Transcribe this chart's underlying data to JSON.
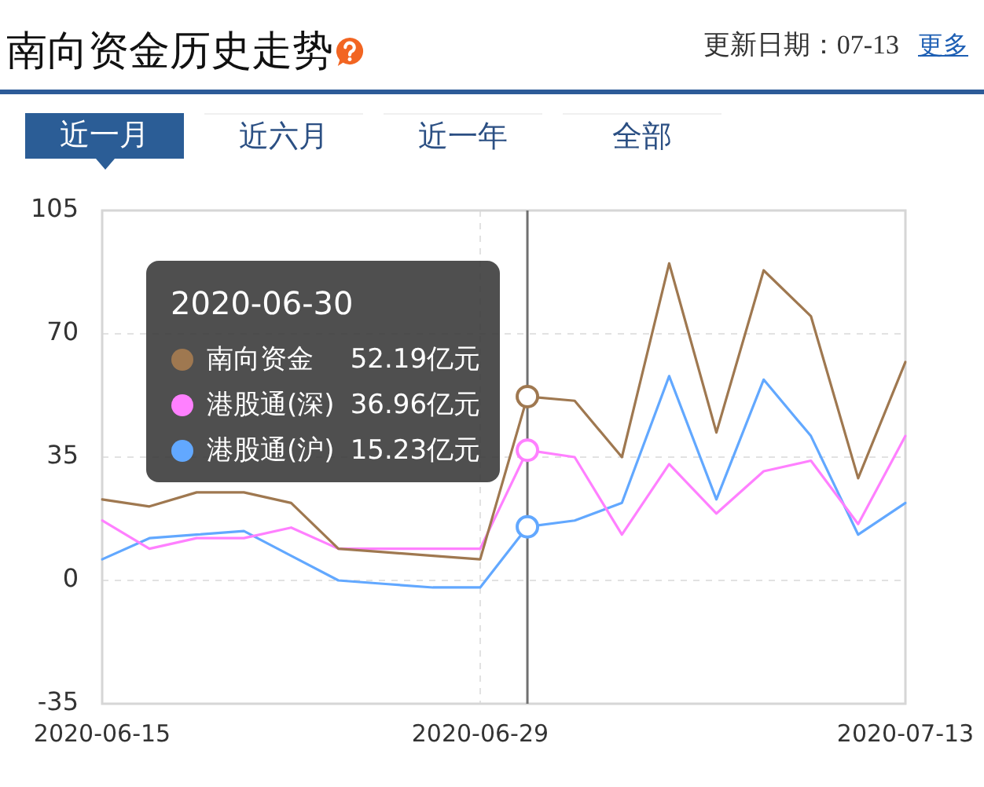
{
  "chart_data": {
    "type": "line",
    "title": "南向资金历史走势",
    "annotations": [
      "更新日期：07-13",
      "更多",
      "近一月",
      "近六月",
      "近一年",
      "全部"
    ],
    "categories": [
      "2020-06-15",
      null,
      null,
      null,
      null,
      null,
      null,
      null,
      "2020-06-29",
      null,
      null,
      null,
      null,
      null,
      null,
      null,
      null,
      "2020-07-13"
    ],
    "series": [
      {
        "name": "南向资金",
        "color": "#9f7850",
        "values": [
          23,
          21,
          25,
          25,
          22,
          9,
          8,
          7,
          6,
          52.19,
          51,
          35,
          90,
          42,
          88,
          75,
          29,
          62
        ],
        "value_labels": [
          null,
          null,
          null,
          null,
          null,
          null,
          null,
          null,
          null,
          "52.19亿元",
          null,
          null,
          null,
          null,
          null,
          null,
          null,
          null
        ]
      },
      {
        "name": "港股通(深)",
        "color": "#ff80ff",
        "values": [
          17,
          9,
          12,
          12,
          15,
          9,
          9,
          9,
          9,
          36.96,
          35,
          13,
          33,
          19,
          31,
          34,
          16,
          41
        ],
        "value_labels": [
          null,
          null,
          null,
          null,
          null,
          null,
          null,
          null,
          null,
          "36.96亿元",
          null,
          null,
          null,
          null,
          null,
          null,
          null,
          null
        ]
      },
      {
        "name": "港股通(沪)",
        "color": "#62a8ff",
        "values": [
          6,
          12,
          13,
          14,
          7,
          0,
          -1,
          -2,
          -2,
          15.23,
          17,
          22,
          58,
          23,
          57,
          41,
          13,
          22
        ],
        "value_labels": [
          null,
          null,
          null,
          null,
          null,
          null,
          null,
          null,
          null,
          "15.23亿元",
          null,
          null,
          null,
          null,
          null,
          null,
          null,
          null
        ]
      }
    ],
    "ylim": [
      -35,
      105
    ],
    "yticks": [
      -35,
      0,
      35,
      70,
      105
    ],
    "grid": true,
    "legend": "left",
    "legend_title": "2020-06-30"
  }
}
